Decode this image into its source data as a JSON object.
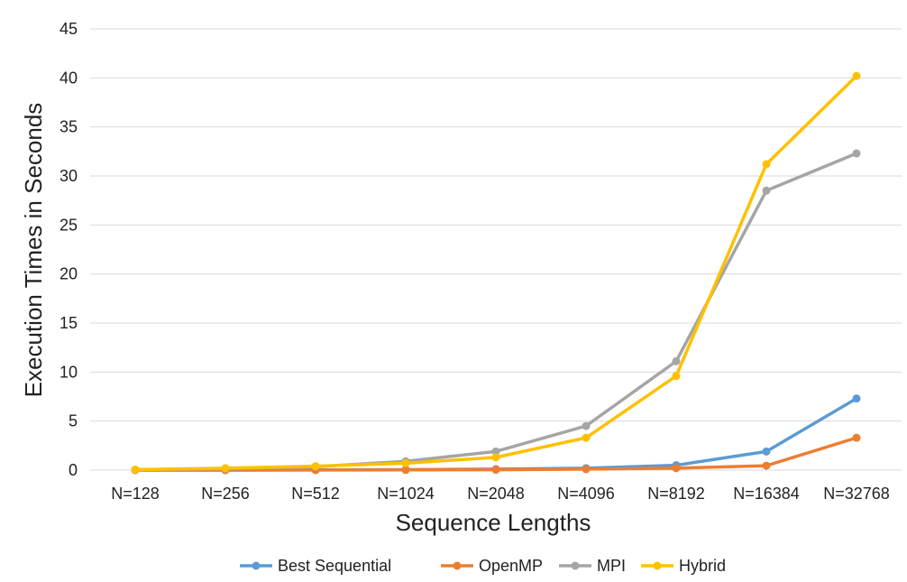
{
  "chart_data": {
    "type": "line",
    "title": "",
    "xlabel": "Sequence Lengths",
    "ylabel": "Execution Times in Seconds",
    "categories": [
      "N=128",
      "N=256",
      "N=512",
      "N=1024",
      "N=2048",
      "N=4096",
      "N=8192",
      "N=16384",
      "N=32768"
    ],
    "yticks": [
      "0",
      "5",
      "10",
      "15",
      "20",
      "25",
      "30",
      "35",
      "40",
      "45"
    ],
    "ylim": [
      0,
      45
    ],
    "grid": true,
    "legend_position": "bottom",
    "series": [
      {
        "name": "Best Sequential",
        "color": "#5B9BD5",
        "values": [
          0.0,
          0.0,
          0.02,
          0.05,
          0.1,
          0.2,
          0.5,
          1.9,
          7.3
        ]
      },
      {
        "name": "OpenMP",
        "color": "#ED7D31",
        "values": [
          0.0,
          0.0,
          0.01,
          0.02,
          0.04,
          0.1,
          0.2,
          0.45,
          3.3
        ]
      },
      {
        "name": "MPI",
        "color": "#A5A5A5",
        "values": [
          0.05,
          0.15,
          0.35,
          0.9,
          1.9,
          4.5,
          11.1,
          28.5,
          32.3
        ]
      },
      {
        "name": "Hybrid",
        "color": "#FFC000",
        "values": [
          0.05,
          0.2,
          0.4,
          0.7,
          1.3,
          3.3,
          9.6,
          31.2,
          40.2
        ]
      }
    ]
  }
}
